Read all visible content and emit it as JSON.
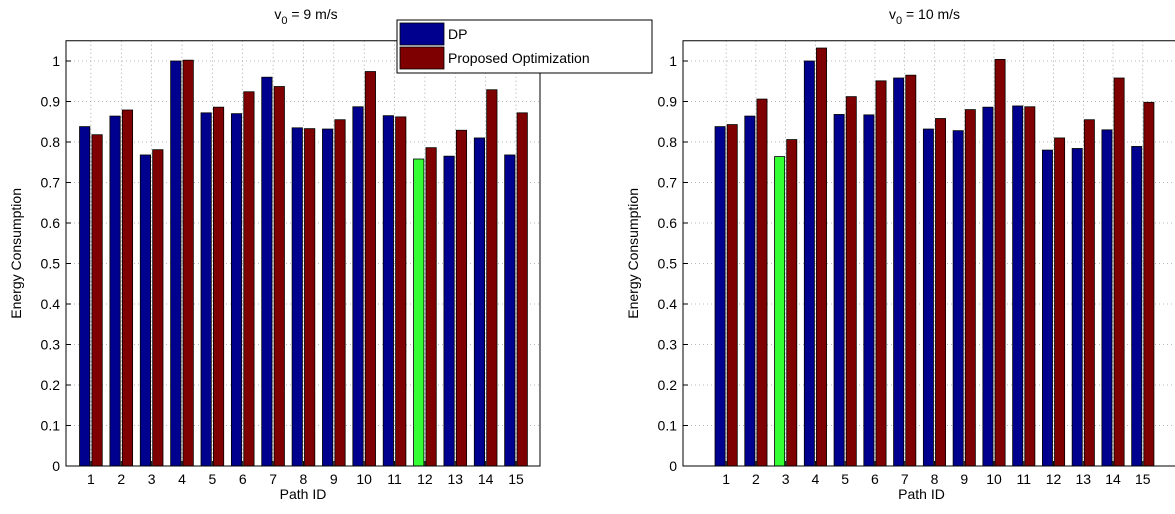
{
  "chart_data": [
    {
      "type": "bar",
      "title": [
        "v",
        "0",
        " = 9 m/s"
      ],
      "x_label": "Path ID",
      "y_label": "Energy Consumption",
      "categories": [
        1,
        2,
        3,
        4,
        5,
        6,
        7,
        8,
        9,
        10,
        11,
        12,
        13,
        14,
        15
      ],
      "series": [
        {
          "name": "DP",
          "color": "#00008f",
          "colors": [
            "#00008f",
            "#00008f",
            "#00008f",
            "#00008f",
            "#00008f",
            "#00008f",
            "#00008f",
            "#00008f",
            "#00008f",
            "#00008f",
            "#00008f",
            "#33ff33",
            "#00008f",
            "#00008f",
            "#00008f"
          ],
          "values": [
            0.838,
            0.864,
            0.768,
            1.0,
            0.872,
            0.87,
            0.96,
            0.835,
            0.832,
            0.887,
            0.865,
            0.758,
            0.765,
            0.81,
            0.768
          ]
        },
        {
          "name": "Proposed Optimization",
          "color": "#7f0000",
          "values": [
            0.818,
            0.879,
            0.781,
            1.002,
            0.886,
            0.924,
            0.937,
            0.833,
            0.855,
            0.974,
            0.862,
            0.786,
            0.829,
            0.929,
            0.872
          ]
        }
      ],
      "xlim": [
        0.18,
        15.79
      ],
      "ylim": [
        0,
        1.05
      ],
      "yticks": [
        0,
        0.1,
        0.2,
        0.3,
        0.4,
        0.5,
        0.6,
        0.7,
        0.8,
        0.9,
        1
      ],
      "grid": true,
      "legend": true
    },
    {
      "type": "bar",
      "title": [
        "v",
        "0",
        " = 10 m/s"
      ],
      "x_label": "Path ID",
      "y_label": "Energy Consumption",
      "categories": [
        1,
        2,
        3,
        4,
        5,
        6,
        7,
        8,
        9,
        10,
        11,
        12,
        13,
        14,
        15
      ],
      "series": [
        {
          "name": "DP",
          "color": "#00008f",
          "colors": [
            "#00008f",
            "#00008f",
            "#33ff33",
            "#00008f",
            "#00008f",
            "#00008f",
            "#00008f",
            "#00008f",
            "#00008f",
            "#00008f",
            "#00008f",
            "#00008f",
            "#00008f",
            "#00008f",
            "#00008f"
          ],
          "values": [
            0.838,
            0.864,
            0.764,
            1.0,
            0.868,
            0.867,
            0.958,
            0.832,
            0.828,
            0.886,
            0.889,
            0.78,
            0.784,
            0.83,
            0.789
          ]
        },
        {
          "name": "Proposed Optimization",
          "color": "#7f0000",
          "values": [
            0.843,
            0.906,
            0.806,
            1.032,
            0.912,
            0.951,
            0.965,
            0.858,
            0.88,
            1.004,
            0.887,
            0.81,
            0.855,
            0.958,
            0.898
          ]
        }
      ],
      "xlim": [
        -0.45,
        16.25
      ],
      "ylim": [
        0,
        1.05
      ],
      "yticks": [
        0,
        0.1,
        0.2,
        0.3,
        0.4,
        0.5,
        0.6,
        0.7,
        0.8,
        0.9,
        1
      ],
      "grid": true,
      "legend": false
    }
  ]
}
